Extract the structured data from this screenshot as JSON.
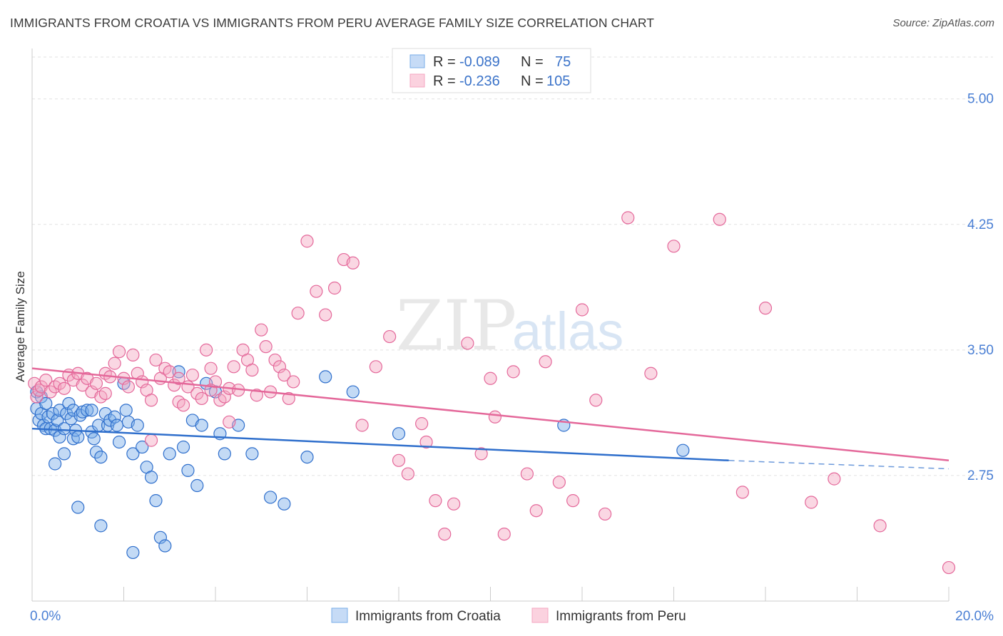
{
  "header": {
    "title": "IMMIGRANTS FROM CROATIA VS IMMIGRANTS FROM PERU AVERAGE FAMILY SIZE CORRELATION CHART",
    "source": "Source: ZipAtlas.com"
  },
  "watermark": {
    "zip": "ZIP",
    "atlas": "atlas"
  },
  "legend": {
    "r_label": "R =",
    "n_label": "N =",
    "croatia": {
      "r": "-0.089",
      "n": "75"
    },
    "peru": {
      "r": "-0.236",
      "n": "105"
    }
  },
  "colors": {
    "croatia": "#7aaee8",
    "croatia_line": "#2f6fcc",
    "peru": "#f4a7c0",
    "peru_line": "#e4689a",
    "tick": "#4a7fd4"
  },
  "chart_data": {
    "type": "scatter",
    "title": "IMMIGRANTS FROM CROATIA VS IMMIGRANTS FROM PERU AVERAGE FAMILY SIZE CORRELATION CHART",
    "xlabel": "",
    "ylabel": "Average Family Size",
    "xlim": [
      0,
      20
    ],
    "ylim": [
      2.0,
      5.25
    ],
    "x_tick_labels": [
      "0.0%",
      "20.0%"
    ],
    "y_ticks": [
      2.75,
      3.5,
      4.25,
      5.0
    ],
    "y_tick_labels": [
      "2.75",
      "3.50",
      "4.25",
      "5.00"
    ],
    "grid": "horizontal dashed",
    "series": [
      {
        "name": "Immigrants from Croatia",
        "trend": {
          "x": [
            0,
            15.2,
            20
          ],
          "y": [
            3.03,
            2.84,
            2.79
          ]
        },
        "points": [
          [
            0.1,
            3.25
          ],
          [
            0.1,
            3.15
          ],
          [
            0.15,
            3.08
          ],
          [
            0.2,
            3.22
          ],
          [
            0.2,
            3.12
          ],
          [
            0.25,
            3.05
          ],
          [
            0.3,
            3.18
          ],
          [
            0.3,
            3.03
          ],
          [
            0.35,
            3.1
          ],
          [
            0.4,
            3.03
          ],
          [
            0.45,
            3.12
          ],
          [
            0.5,
            3.02
          ],
          [
            0.55,
            3.08
          ],
          [
            0.6,
            3.14
          ],
          [
            0.6,
            2.98
          ],
          [
            0.7,
            3.03
          ],
          [
            0.7,
            2.88
          ],
          [
            0.75,
            3.12
          ],
          [
            0.8,
            3.18
          ],
          [
            0.85,
            3.09
          ],
          [
            0.9,
            3.14
          ],
          [
            0.9,
            2.97
          ],
          [
            0.95,
            3.02
          ],
          [
            1.0,
            2.98
          ],
          [
            1.05,
            3.11
          ],
          [
            1.1,
            3.13
          ],
          [
            1.2,
            3.14
          ],
          [
            1.3,
            3.14
          ],
          [
            1.3,
            3.01
          ],
          [
            1.35,
            2.97
          ],
          [
            1.4,
            2.89
          ],
          [
            1.45,
            3.05
          ],
          [
            1.5,
            2.86
          ],
          [
            1.6,
            3.12
          ],
          [
            1.65,
            3.05
          ],
          [
            1.7,
            3.08
          ],
          [
            1.8,
            3.1
          ],
          [
            1.85,
            3.05
          ],
          [
            1.9,
            2.95
          ],
          [
            2.0,
            3.3
          ],
          [
            2.05,
            3.14
          ],
          [
            2.1,
            3.07
          ],
          [
            2.2,
            2.88
          ],
          [
            2.3,
            3.05
          ],
          [
            2.4,
            2.92
          ],
          [
            2.5,
            2.8
          ],
          [
            2.6,
            2.74
          ],
          [
            2.7,
            2.6
          ],
          [
            2.8,
            2.38
          ],
          [
            2.9,
            2.33
          ],
          [
            3.0,
            2.88
          ],
          [
            3.2,
            3.37
          ],
          [
            3.3,
            2.92
          ],
          [
            3.4,
            2.78
          ],
          [
            3.5,
            3.08
          ],
          [
            3.6,
            2.69
          ],
          [
            3.7,
            3.05
          ],
          [
            3.8,
            3.3
          ],
          [
            4.0,
            3.25
          ],
          [
            4.1,
            3.0
          ],
          [
            4.2,
            2.88
          ],
          [
            4.5,
            3.05
          ],
          [
            4.8,
            2.88
          ],
          [
            5.2,
            2.62
          ],
          [
            5.5,
            2.58
          ],
          [
            6.0,
            2.86
          ],
          [
            6.4,
            3.34
          ],
          [
            7.0,
            3.25
          ],
          [
            8.0,
            3.0
          ],
          [
            11.6,
            3.05
          ],
          [
            0.5,
            2.82
          ],
          [
            1.0,
            2.56
          ],
          [
            1.5,
            2.45
          ],
          [
            2.2,
            2.29
          ],
          [
            14.2,
            2.9
          ]
        ]
      },
      {
        "name": "Immigrants from Peru",
        "trend": {
          "x": [
            0,
            20
          ],
          "y": [
            3.39,
            2.84
          ]
        },
        "points": [
          [
            0.05,
            3.3
          ],
          [
            0.1,
            3.22
          ],
          [
            0.15,
            3.26
          ],
          [
            0.2,
            3.28
          ],
          [
            0.3,
            3.32
          ],
          [
            0.4,
            3.25
          ],
          [
            0.5,
            3.28
          ],
          [
            0.6,
            3.3
          ],
          [
            0.7,
            3.27
          ],
          [
            0.8,
            3.35
          ],
          [
            0.9,
            3.32
          ],
          [
            1.0,
            3.36
          ],
          [
            1.1,
            3.29
          ],
          [
            1.2,
            3.33
          ],
          [
            1.3,
            3.25
          ],
          [
            1.4,
            3.3
          ],
          [
            1.5,
            3.22
          ],
          [
            1.6,
            3.36
          ],
          [
            1.7,
            3.34
          ],
          [
            1.8,
            3.42
          ],
          [
            1.9,
            3.49
          ],
          [
            2.0,
            3.33
          ],
          [
            2.1,
            3.28
          ],
          [
            2.2,
            3.47
          ],
          [
            2.3,
            3.36
          ],
          [
            2.4,
            3.31
          ],
          [
            2.5,
            3.26
          ],
          [
            2.6,
            3.2
          ],
          [
            2.7,
            3.44
          ],
          [
            2.8,
            3.33
          ],
          [
            2.9,
            3.39
          ],
          [
            3.0,
            3.37
          ],
          [
            3.1,
            3.29
          ],
          [
            3.2,
            3.19
          ],
          [
            3.3,
            3.17
          ],
          [
            3.4,
            3.28
          ],
          [
            3.5,
            3.35
          ],
          [
            3.6,
            3.24
          ],
          [
            3.7,
            3.21
          ],
          [
            3.8,
            3.5
          ],
          [
            3.9,
            3.39
          ],
          [
            4.0,
            3.31
          ],
          [
            4.1,
            3.2
          ],
          [
            4.2,
            3.22
          ],
          [
            4.3,
            3.27
          ],
          [
            4.4,
            3.4
          ],
          [
            4.5,
            3.26
          ],
          [
            4.6,
            3.5
          ],
          [
            4.7,
            3.44
          ],
          [
            4.8,
            3.38
          ],
          [
            4.9,
            3.23
          ],
          [
            5.0,
            3.62
          ],
          [
            5.1,
            3.52
          ],
          [
            5.2,
            3.25
          ],
          [
            5.3,
            3.44
          ],
          [
            5.4,
            3.4
          ],
          [
            5.5,
            3.35
          ],
          [
            5.6,
            3.21
          ],
          [
            5.7,
            3.31
          ],
          [
            5.8,
            3.72
          ],
          [
            6.0,
            4.15
          ],
          [
            6.2,
            3.85
          ],
          [
            6.4,
            3.71
          ],
          [
            6.6,
            3.87
          ],
          [
            6.8,
            4.04
          ],
          [
            7.0,
            4.02
          ],
          [
            7.2,
            3.05
          ],
          [
            7.5,
            3.4
          ],
          [
            7.8,
            3.58
          ],
          [
            8.0,
            2.84
          ],
          [
            8.2,
            2.76
          ],
          [
            8.5,
            3.06
          ],
          [
            8.6,
            2.95
          ],
          [
            8.8,
            2.6
          ],
          [
            9.0,
            2.4
          ],
          [
            9.2,
            2.58
          ],
          [
            9.5,
            3.54
          ],
          [
            9.8,
            2.88
          ],
          [
            10.0,
            3.33
          ],
          [
            10.1,
            3.1
          ],
          [
            10.3,
            2.4
          ],
          [
            10.5,
            3.37
          ],
          [
            10.8,
            2.76
          ],
          [
            11.0,
            2.54
          ],
          [
            11.2,
            3.43
          ],
          [
            11.5,
            2.71
          ],
          [
            11.8,
            2.6
          ],
          [
            12.0,
            3.74
          ],
          [
            12.3,
            3.2
          ],
          [
            12.5,
            2.52
          ],
          [
            13.0,
            4.29
          ],
          [
            13.5,
            3.36
          ],
          [
            14.0,
            4.12
          ],
          [
            15.0,
            4.28
          ],
          [
            15.5,
            2.65
          ],
          [
            16.0,
            3.75
          ],
          [
            17.0,
            2.59
          ],
          [
            17.5,
            2.73
          ],
          [
            18.5,
            2.45
          ],
          [
            20.0,
            2.2
          ],
          [
            3.2,
            3.33
          ],
          [
            2.6,
            2.96
          ],
          [
            3.9,
            3.26
          ],
          [
            1.6,
            3.24
          ],
          [
            4.3,
            3.07
          ]
        ]
      }
    ]
  },
  "bottom_legend": {
    "croatia": "Immigrants from Croatia",
    "peru": "Immigrants from Peru"
  }
}
